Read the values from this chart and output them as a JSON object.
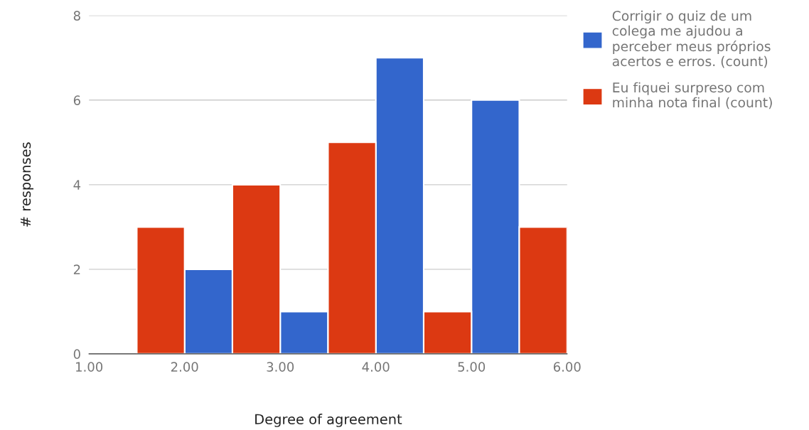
{
  "chart_data": {
    "type": "bar",
    "xlabel": "Degree of agreement",
    "ylabel": "# responses",
    "series": [
      {
        "name": "Corrigir o quiz de um\ncolega me ajudou a\nperceber meus próprios\nacertos e erros. (count)",
        "color": "#3366cc",
        "x": [
          2.25,
          3.25,
          4.25,
          5.25
        ],
        "values": [
          2,
          1,
          7,
          6
        ]
      },
      {
        "name": "Eu fiquei surpreso com\nminha nota final (count)",
        "color": "#dc3912",
        "x": [
          1.75,
          2.75,
          3.75,
          4.75,
          5.75
        ],
        "values": [
          3,
          4,
          5,
          1,
          3
        ]
      }
    ],
    "xlim": [
      1,
      6
    ],
    "xticks": [
      {
        "value": 1,
        "label": "1.00"
      },
      {
        "value": 2,
        "label": "2.00"
      },
      {
        "value": 3,
        "label": "3.00"
      },
      {
        "value": 4,
        "label": "4.00"
      },
      {
        "value": 5,
        "label": "5.00"
      },
      {
        "value": 6,
        "label": "6.00"
      }
    ],
    "ylim": [
      0,
      8
    ],
    "yticks": [
      0,
      2,
      4,
      6,
      8
    ],
    "grid": "y",
    "legend": "top right"
  }
}
